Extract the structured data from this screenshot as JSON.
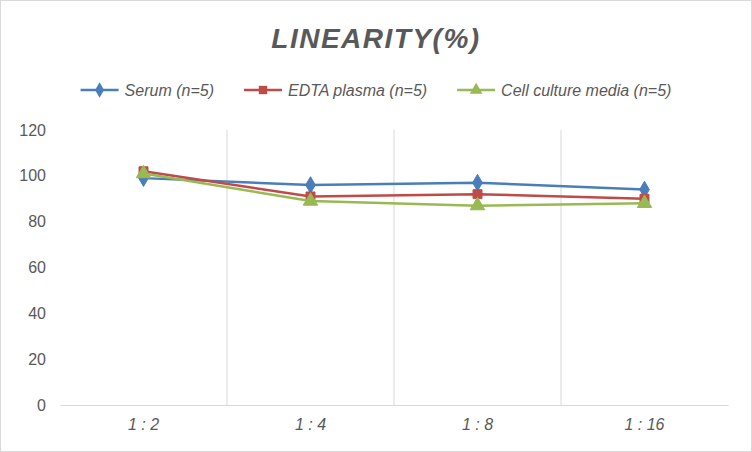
{
  "chart_data": {
    "type": "line",
    "title": "LINEARITY(%)",
    "categories": [
      "1 : 2",
      "1 : 4",
      "1 : 8",
      "1 : 16"
    ],
    "series": [
      {
        "name": "Serum (n=5)",
        "color": "#4a7ebb",
        "marker": "diamond",
        "values": [
          99,
          96,
          97,
          94
        ]
      },
      {
        "name": "EDTA plasma (n=5)",
        "color": "#be4b48",
        "marker": "square",
        "values": [
          102,
          91,
          92,
          90
        ]
      },
      {
        "name": "Cell culture media (n=5)",
        "color": "#98b954",
        "marker": "triangle",
        "values": [
          101,
          89,
          87,
          88
        ]
      }
    ],
    "ylim": [
      0,
      120
    ],
    "yticks": [
      0,
      20,
      40,
      60,
      80,
      100,
      120
    ],
    "grid": true,
    "legend": "top"
  }
}
